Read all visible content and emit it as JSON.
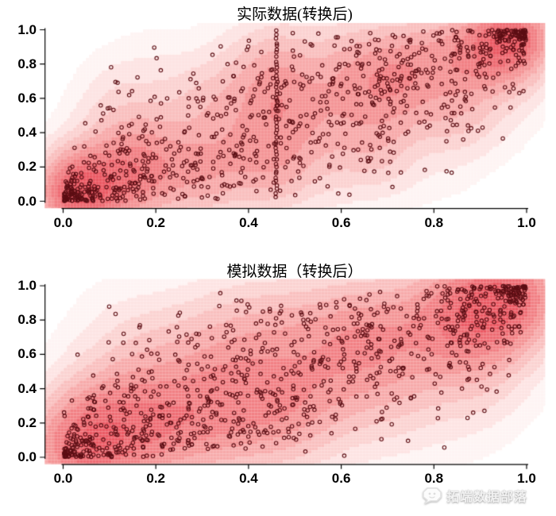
{
  "figure": {
    "background": "#ffffff",
    "watermark": {
      "logo_icon": "tecdat-bubble-logo",
      "text": "拓端数据部落"
    }
  },
  "chart_data": [
    {
      "id": "actual",
      "type": "scatter",
      "overlay": "filled-kde-density-contours",
      "title": "实际数据(转换后)",
      "xlabel": "",
      "ylabel": "",
      "xlim": [
        0,
        1
      ],
      "ylim": [
        0,
        1
      ],
      "xtick_values": [
        0,
        0.2,
        0.4,
        0.6,
        0.8,
        1.0
      ],
      "xticks": [
        "0.0",
        "0.2",
        "0.4",
        "0.6",
        "0.8",
        "1.0"
      ],
      "ytick_values": [
        0,
        0.2,
        0.4,
        0.6,
        0.8,
        1.0
      ],
      "yticks": [
        "0.0",
        "0.2",
        "0.4",
        "0.6",
        "0.8",
        "1.0"
      ],
      "grid": false,
      "legend": null,
      "n_points": 1000,
      "distribution": "uniform [0,1] marginals, strong positive dependence; dense clusters at (0,0) and (1,1) corners; vertical column of tied points at x≈0.46; white low-density regions in upper-left and lower-right corners",
      "generator": {
        "seed": 42,
        "copula_rho": 0.72,
        "corner_low_frac": 0.075,
        "corner_high_frac": 0.075,
        "corner_scale": 0.05,
        "tied_column": {
          "x": 0.46,
          "count": 46,
          "y_min": 0.03,
          "y_max": 0.99
        }
      },
      "kde_bandwidth": 0.05,
      "density_gamma": 0.55,
      "point_color": "#5c0e14",
      "density_palette": [
        "#ffffff",
        "#fef4f3",
        "#fde4e3",
        "#fbd2d1",
        "#f9bfbe",
        "#f7aaaa",
        "#f49596",
        "#f18084",
        "#ee6c73",
        "#eb5a64"
      ]
    },
    {
      "id": "simulated",
      "type": "scatter",
      "overlay": "filled-kde-density-contours",
      "title": "模拟数据（转换后）",
      "xlabel": "",
      "ylabel": "",
      "xlim": [
        0,
        1
      ],
      "ylim": [
        0,
        1
      ],
      "xtick_values": [
        0,
        0.2,
        0.4,
        0.6,
        0.8,
        1.0
      ],
      "xticks": [
        "0.0",
        "0.2",
        "0.4",
        "0.6",
        "0.8",
        "1.0"
      ],
      "ytick_values": [
        0,
        0.2,
        0.4,
        0.6,
        0.8,
        1.0
      ],
      "yticks": [
        "0.0",
        "0.2",
        "0.4",
        "0.6",
        "0.8",
        "1.0"
      ],
      "grid": false,
      "legend": null,
      "n_points": 1000,
      "distribution": "uniform [0,1] marginals, strong positive dependence; smoother/broader density than actual data; dense clusters at (0,0) and (1,1) corners",
      "generator": {
        "seed": 7,
        "copula_rho": 0.7,
        "corner_low_frac": 0.06,
        "corner_high_frac": 0.06,
        "corner_scale": 0.055,
        "tied_column": null
      },
      "kde_bandwidth": 0.065,
      "density_gamma": 0.55,
      "point_color": "#5c0e14",
      "density_palette": [
        "#ffffff",
        "#fef4f3",
        "#fde4e3",
        "#fbd2d1",
        "#f9bfbe",
        "#f7aaaa",
        "#f49596",
        "#f18084",
        "#ee6c73",
        "#eb5a64"
      ]
    }
  ]
}
